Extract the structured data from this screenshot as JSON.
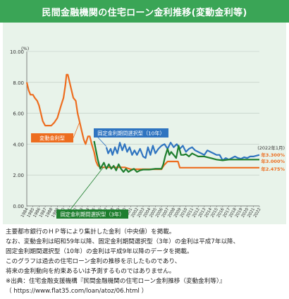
{
  "header": {
    "title": "民間金融機関の住宅ローン金利推移(変動金利等)"
  },
  "chart_data": {
    "type": "line",
    "yunit": "(%)",
    "ylim": [
      0,
      10
    ],
    "yticks": [
      "0.00",
      "2.00",
      "4.00",
      "6.00",
      "8.00",
      "10.00"
    ],
    "xlim": [
      1984,
      2022
    ],
    "xticks": [
      "1984",
      "1985",
      "1986",
      "1987",
      "1988",
      "1989",
      "1990",
      "1991",
      "1992",
      "1993",
      "1994",
      "1995",
      "1996",
      "1997",
      "1998",
      "1999",
      "2000",
      "2001",
      "2002",
      "2003",
      "2004",
      "2005",
      "2006",
      "2007",
      "2008",
      "2009",
      "2010",
      "2011",
      "2012",
      "2013",
      "2014",
      "2015",
      "2016",
      "2017",
      "2018",
      "2019",
      "2020",
      "2021",
      "2022"
    ],
    "grid": true,
    "series": [
      {
        "name": "変動金利型",
        "color": "#ed6d1f",
        "points": [
          [
            1984.0,
            8.0
          ],
          [
            1984.3,
            7.5
          ],
          [
            1984.6,
            7.2
          ],
          [
            1985.0,
            7.2
          ],
          [
            1985.3,
            7.0
          ],
          [
            1985.7,
            6.8
          ],
          [
            1986.0,
            6.5
          ],
          [
            1986.3,
            6.0
          ],
          [
            1986.6,
            5.5
          ],
          [
            1987.0,
            5.2
          ],
          [
            1987.5,
            5.2
          ],
          [
            1988.0,
            5.2
          ],
          [
            1988.5,
            5.4
          ],
          [
            1989.0,
            5.7
          ],
          [
            1989.3,
            6.1
          ],
          [
            1989.6,
            6.5
          ],
          [
            1990.0,
            7.0
          ],
          [
            1990.3,
            7.8
          ],
          [
            1990.5,
            8.5
          ],
          [
            1990.7,
            8.5
          ],
          [
            1991.0,
            8.0
          ],
          [
            1991.3,
            7.5
          ],
          [
            1991.6,
            7.0
          ],
          [
            1992.0,
            6.8
          ],
          [
            1992.3,
            6.0
          ],
          [
            1992.6,
            5.5
          ],
          [
            1993.0,
            4.8
          ],
          [
            1993.3,
            4.3
          ],
          [
            1993.6,
            4.0
          ],
          [
            1994.0,
            4.5
          ],
          [
            1994.3,
            4.5
          ],
          [
            1994.6,
            4.0
          ],
          [
            1995.0,
            3.5
          ],
          [
            1995.3,
            2.9
          ],
          [
            1995.6,
            2.625
          ],
          [
            1996.0,
            2.5
          ],
          [
            2000.0,
            2.5
          ],
          [
            2001.0,
            2.375
          ],
          [
            2006.0,
            2.375
          ],
          [
            2006.4,
            2.625
          ],
          [
            2007.0,
            2.875
          ],
          [
            2008.0,
            2.875
          ],
          [
            2008.7,
            2.875
          ],
          [
            2009.0,
            2.475
          ],
          [
            2022.0,
            2.475
          ]
        ]
      },
      {
        "name": "固定金利期間選択型（10年）",
        "color": "#2f74c0",
        "points": [
          [
            1997.0,
            3.8
          ],
          [
            1997.3,
            3.4
          ],
          [
            1997.7,
            3.7
          ],
          [
            1998.0,
            3.3
          ],
          [
            1998.4,
            3.8
          ],
          [
            1998.8,
            3.4
          ],
          [
            1999.2,
            4.1
          ],
          [
            1999.6,
            3.6
          ],
          [
            2000.0,
            4.0
          ],
          [
            2000.4,
            3.5
          ],
          [
            2000.8,
            3.8
          ],
          [
            2001.2,
            3.3
          ],
          [
            2001.6,
            3.6
          ],
          [
            2002.0,
            3.3
          ],
          [
            2002.5,
            3.7
          ],
          [
            2003.0,
            3.2
          ],
          [
            2003.4,
            3.1
          ],
          [
            2003.8,
            3.8
          ],
          [
            2004.2,
            3.3
          ],
          [
            2004.6,
            3.9
          ],
          [
            2005.0,
            3.4
          ],
          [
            2005.5,
            3.7
          ],
          [
            2006.0,
            3.9
          ],
          [
            2006.5,
            4.0
          ],
          [
            2007.0,
            3.7
          ],
          [
            2007.5,
            4.1
          ],
          [
            2008.0,
            3.8
          ],
          [
            2008.5,
            4.0
          ],
          [
            2009.0,
            3.7
          ],
          [
            2009.5,
            3.9
          ],
          [
            2010.0,
            3.5
          ],
          [
            2010.5,
            3.7
          ],
          [
            2011.0,
            3.8
          ],
          [
            2011.5,
            3.6
          ],
          [
            2012.0,
            3.5
          ],
          [
            2012.5,
            3.4
          ],
          [
            2013.0,
            3.3
          ],
          [
            2013.5,
            3.6
          ],
          [
            2014.0,
            3.5
          ],
          [
            2014.5,
            3.4
          ],
          [
            2015.0,
            3.3
          ],
          [
            2015.5,
            3.3
          ],
          [
            2016.0,
            2.95
          ],
          [
            2016.5,
            3.1
          ],
          [
            2017.0,
            3.0
          ],
          [
            2017.5,
            3.1
          ],
          [
            2018.0,
            3.2
          ],
          [
            2018.5,
            3.1
          ],
          [
            2019.0,
            3.05
          ],
          [
            2019.5,
            3.15
          ],
          [
            2020.0,
            3.1
          ],
          [
            2020.5,
            3.2
          ],
          [
            2021.0,
            3.2
          ],
          [
            2021.5,
            3.25
          ],
          [
            2022.0,
            3.3
          ]
        ]
      },
      {
        "name": "固定金利期間選択型（3年）",
        "color": "#1e7e2e",
        "points": [
          [
            1995.0,
            4.2
          ],
          [
            1995.3,
            3.6
          ],
          [
            1995.6,
            3.0
          ],
          [
            1996.0,
            2.4
          ],
          [
            1996.3,
            2.6
          ],
          [
            1996.6,
            2.8
          ],
          [
            1997.0,
            2.4
          ],
          [
            1997.4,
            2.7
          ],
          [
            1997.8,
            2.4
          ],
          [
            1998.2,
            2.6
          ],
          [
            1998.6,
            2.3
          ],
          [
            1999.0,
            2.7
          ],
          [
            1999.4,
            2.4
          ],
          [
            1999.8,
            2.2
          ],
          [
            2000.2,
            2.4
          ],
          [
            2000.6,
            2.2
          ],
          [
            2001.0,
            2.3
          ],
          [
            2001.5,
            2.4
          ],
          [
            2002.0,
            2.2
          ],
          [
            2002.5,
            2.3
          ],
          [
            2003.0,
            2.35
          ],
          [
            2004.0,
            2.35
          ],
          [
            2005.0,
            2.4
          ],
          [
            2006.0,
            2.4
          ],
          [
            2006.3,
            2.7
          ],
          [
            2006.6,
            3.2
          ],
          [
            2007.0,
            3.7
          ],
          [
            2007.3,
            3.3
          ],
          [
            2007.6,
            3.5
          ],
          [
            2008.0,
            3.3
          ],
          [
            2008.4,
            3.1
          ],
          [
            2008.8,
            3.9
          ],
          [
            2009.2,
            3.3
          ],
          [
            2009.6,
            3.3
          ],
          [
            2010.0,
            3.35
          ],
          [
            2010.5,
            3.2
          ],
          [
            2011.0,
            3.4
          ],
          [
            2011.5,
            3.3
          ],
          [
            2012.0,
            3.2
          ],
          [
            2013.0,
            3.2
          ],
          [
            2014.0,
            3.1
          ],
          [
            2015.0,
            3.0
          ],
          [
            2016.0,
            2.95
          ],
          [
            2017.0,
            3.0
          ],
          [
            2018.0,
            3.0
          ],
          [
            2019.0,
            3.0
          ],
          [
            2020.0,
            3.0
          ],
          [
            2021.0,
            3.0
          ],
          [
            2022.0,
            3.0
          ]
        ]
      }
    ],
    "end_values": {
      "date": "(2022年1月)",
      "ten_year": "年3.300%",
      "three_year": "年3.000%",
      "variable": "年2.475%"
    }
  },
  "notes": [
    "主要都市銀行のＨＰ等により集計した金利（中央値）を掲載。",
    "なお、変動金利は昭和59年以降、固定金利期間選択型（3年）の金利は平成7年以降、",
    "固定金利期間選択型（10年）の金利は平成9年以降のデータを掲載。",
    "このグラフは過去の住宅ローン金利の推移を示したものであり、",
    "将来の金利動向を約束あるいは予測するものではありません。",
    "※出典：住宅金融支援機構『民間金融機関の住宅ローン金利推移（変動金利等）』",
    "（ https://www.flat35.com/loan/atoz/06.html ）"
  ]
}
